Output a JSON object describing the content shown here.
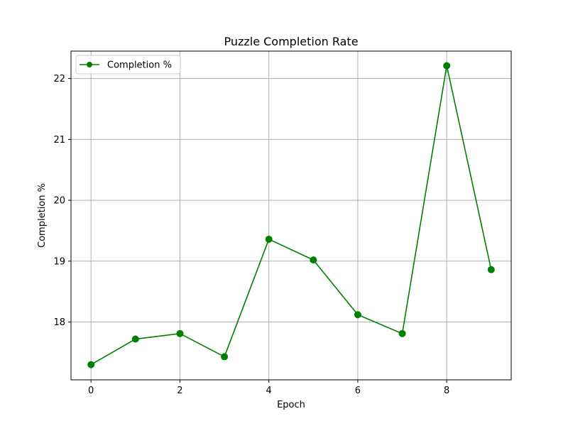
{
  "chart_data": {
    "type": "line",
    "title": "Puzzle Completion Rate",
    "xlabel": "Epoch",
    "ylabel": "Completion %",
    "xlim": [
      -0.45,
      9.45
    ],
    "ylim": [
      17.05,
      22.45
    ],
    "x_ticks": [
      0,
      2,
      4,
      6,
      8
    ],
    "y_ticks": [
      18,
      19,
      20,
      21,
      22
    ],
    "grid": true,
    "legend_position": "top-left",
    "series": [
      {
        "name": "Completion %",
        "color": "#008000",
        "marker": "circle",
        "x": [
          0,
          1,
          2,
          3,
          4,
          5,
          6,
          7,
          8,
          9
        ],
        "y": [
          17.3,
          17.72,
          17.81,
          17.43,
          19.36,
          19.02,
          18.12,
          17.81,
          22.21,
          18.86
        ]
      }
    ]
  }
}
